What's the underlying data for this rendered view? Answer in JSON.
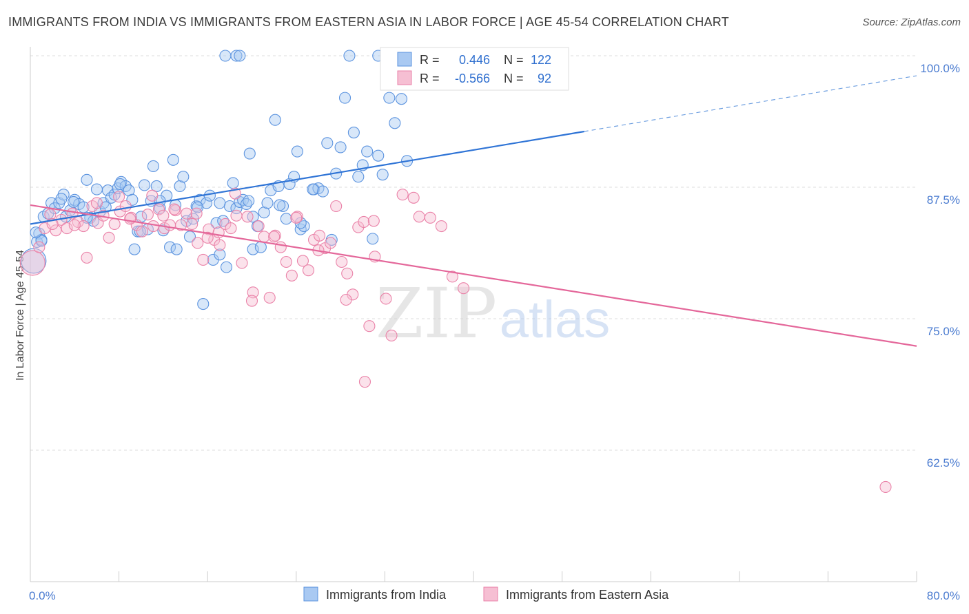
{
  "title": "IMMIGRANTS FROM INDIA VS IMMIGRANTS FROM EASTERN ASIA IN LABOR FORCE | AGE 45-54 CORRELATION CHART",
  "source": "Source: ZipAtlas.com",
  "watermark": {
    "zip": "ZIP",
    "atlas": "atlas"
  },
  "chart_data": {
    "type": "scatter",
    "xlim": [
      0,
      80
    ],
    "ylim": [
      50,
      100
    ],
    "ylabel": "In Labor Force | Age 45-54",
    "xlabel": "",
    "x_tick_labels": [
      {
        "value": 0,
        "label": "0.0%"
      },
      {
        "value": 80,
        "label": "80.0%"
      }
    ],
    "y_ticks": [
      {
        "value": 100,
        "label": "100.0%"
      },
      {
        "value": 87.5,
        "label": "87.5%"
      },
      {
        "value": 75,
        "label": "75.0%"
      },
      {
        "value": 62.5,
        "label": "62.5%"
      }
    ],
    "x_minor_ticks": [
      0,
      8,
      16,
      24,
      32,
      40,
      48,
      56,
      64,
      72,
      80
    ],
    "legend": [
      {
        "r_label": "R =",
        "r_value": "0.446",
        "n_label": "N =",
        "n_value": "122"
      },
      {
        "r_label": "R =",
        "r_value": "-0.566",
        "n_label": "N =",
        "n_value": "92"
      }
    ],
    "series": [
      {
        "name": "Immigrants from India",
        "color": "#6fa3e6",
        "stroke": "#5b93df",
        "fill": "#a9c9f2",
        "trend": {
          "x0": 0,
          "y0": 84.0,
          "x1": 50,
          "y1": 92.8,
          "dash_to_x": 80,
          "dash_to_y": 98.1
        },
        "points": [
          [
            0.3,
            80.5
          ],
          [
            0.6,
            82.3
          ],
          [
            0.8,
            83.1
          ],
          [
            1.0,
            82.5
          ],
          [
            1.2,
            84.7
          ],
          [
            1.6,
            85.0
          ],
          [
            1.9,
            86.0
          ],
          [
            2.2,
            85.5
          ],
          [
            2.6,
            86.0
          ],
          [
            3.0,
            86.8
          ],
          [
            3.2,
            84.7
          ],
          [
            3.6,
            85.3
          ],
          [
            4.0,
            86.3
          ],
          [
            4.4,
            85.9
          ],
          [
            4.8,
            85.6
          ],
          [
            5.1,
            88.2
          ],
          [
            5.4,
            84.6
          ],
          [
            5.7,
            84.3
          ],
          [
            6.0,
            87.3
          ],
          [
            6.3,
            85.2
          ],
          [
            6.6,
            86.0
          ],
          [
            7.0,
            87.2
          ],
          [
            7.3,
            86.5
          ],
          [
            7.6,
            86.8
          ],
          [
            7.9,
            87.4
          ],
          [
            8.2,
            88.0
          ],
          [
            8.6,
            87.6
          ],
          [
            8.9,
            87.2
          ],
          [
            9.2,
            86.3
          ],
          [
            9.4,
            81.6
          ],
          [
            9.7,
            83.3
          ],
          [
            10.0,
            84.7
          ],
          [
            10.3,
            87.7
          ],
          [
            10.6,
            83.5
          ],
          [
            10.9,
            86.2
          ],
          [
            11.1,
            89.5
          ],
          [
            11.4,
            87.6
          ],
          [
            11.7,
            85.5
          ],
          [
            12.0,
            83.4
          ],
          [
            12.3,
            86.7
          ],
          [
            12.6,
            81.8
          ],
          [
            12.9,
            90.1
          ],
          [
            13.2,
            81.6
          ],
          [
            13.5,
            87.6
          ],
          [
            13.8,
            88.5
          ],
          [
            14.1,
            84.3
          ],
          [
            14.4,
            82.8
          ],
          [
            14.7,
            84.5
          ],
          [
            15.0,
            85.7
          ],
          [
            15.3,
            86.3
          ],
          [
            15.6,
            76.4
          ],
          [
            15.9,
            86.0
          ],
          [
            16.2,
            86.7
          ],
          [
            16.5,
            80.6
          ],
          [
            16.8,
            84.1
          ],
          [
            17.1,
            81.1
          ],
          [
            17.4,
            84.3
          ],
          [
            17.7,
            79.9
          ],
          [
            18.0,
            85.7
          ],
          [
            18.3,
            87.9
          ],
          [
            18.6,
            85.5
          ],
          [
            18.9,
            86.1
          ],
          [
            19.2,
            86.3
          ],
          [
            19.5,
            85.9
          ],
          [
            19.8,
            90.7
          ],
          [
            20.1,
            81.6
          ],
          [
            20.5,
            83.8
          ],
          [
            20.8,
            81.8
          ],
          [
            21.1,
            85.1
          ],
          [
            21.4,
            86.0
          ],
          [
            21.7,
            87.2
          ],
          [
            22.1,
            93.9
          ],
          [
            22.4,
            87.6
          ],
          [
            22.8,
            85.7
          ],
          [
            23.1,
            84.5
          ],
          [
            23.4,
            87.8
          ],
          [
            23.8,
            88.5
          ],
          [
            24.1,
            90.9
          ],
          [
            24.4,
            83.5
          ],
          [
            24.7,
            83.8
          ],
          [
            25.6,
            87.3
          ],
          [
            26.0,
            87.4
          ],
          [
            26.4,
            87.1
          ],
          [
            26.8,
            91.7
          ],
          [
            27.2,
            82.5
          ],
          [
            27.6,
            88.8
          ],
          [
            28.0,
            91.3
          ],
          [
            28.4,
            96.0
          ],
          [
            28.8,
            100.0
          ],
          [
            29.2,
            92.7
          ],
          [
            29.6,
            88.5
          ],
          [
            30.0,
            89.6
          ],
          [
            30.4,
            90.9
          ],
          [
            30.9,
            82.6
          ],
          [
            31.4,
            90.5
          ],
          [
            31.8,
            88.7
          ],
          [
            32.4,
            96.0
          ],
          [
            32.9,
            93.6
          ],
          [
            33.5,
            95.9
          ],
          [
            34.0,
            90.0
          ],
          [
            34.8,
            100.0
          ],
          [
            17.6,
            100.0
          ],
          [
            18.6,
            100.0
          ],
          [
            18.9,
            100.0
          ],
          [
            31.4,
            100.0
          ],
          [
            5.1,
            84.6
          ],
          [
            8.1,
            87.8
          ],
          [
            9.9,
            83.3
          ],
          [
            13.1,
            85.8
          ],
          [
            17.1,
            86.0
          ],
          [
            20.1,
            84.7
          ],
          [
            24.4,
            84.1
          ],
          [
            2.8,
            86.4
          ],
          [
            3.9,
            86.1
          ],
          [
            6.8,
            85.6
          ],
          [
            11.7,
            86.2
          ],
          [
            15.1,
            85.6
          ],
          [
            19.7,
            86.2
          ],
          [
            22.5,
            85.8
          ],
          [
            25.5,
            87.3
          ],
          [
            1.0,
            82.4
          ],
          [
            0.5,
            83.2
          ]
        ]
      },
      {
        "name": "Immigrants from Eastern Asia",
        "color": "#ef8fb1",
        "stroke": "#ea82a8",
        "fill": "#f6bfd3",
        "trend": {
          "x0": 0,
          "y0": 85.8,
          "x1": 80,
          "y1": 72.4
        },
        "points": [
          [
            0.2,
            80.3
          ],
          [
            0.8,
            81.8
          ],
          [
            1.3,
            83.6
          ],
          [
            1.8,
            84.9
          ],
          [
            2.3,
            83.4
          ],
          [
            2.8,
            84.4
          ],
          [
            3.3,
            83.6
          ],
          [
            3.8,
            85.0
          ],
          [
            4.3,
            84.2
          ],
          [
            4.8,
            83.8
          ],
          [
            5.1,
            80.8
          ],
          [
            5.6,
            85.7
          ],
          [
            6.1,
            84.1
          ],
          [
            6.6,
            84.8
          ],
          [
            7.1,
            82.7
          ],
          [
            7.6,
            84.0
          ],
          [
            8.1,
            85.2
          ],
          [
            8.6,
            85.7
          ],
          [
            9.1,
            84.6
          ],
          [
            9.6,
            83.9
          ],
          [
            10.1,
            83.3
          ],
          [
            10.6,
            84.9
          ],
          [
            11.1,
            83.8
          ],
          [
            11.6,
            85.4
          ],
          [
            12.1,
            83.6
          ],
          [
            12.6,
            83.9
          ],
          [
            13.1,
            85.3
          ],
          [
            13.6,
            83.9
          ],
          [
            14.1,
            85.0
          ],
          [
            14.6,
            84.0
          ],
          [
            15.1,
            82.2
          ],
          [
            15.6,
            80.6
          ],
          [
            16.1,
            83.5
          ],
          [
            16.6,
            82.5
          ],
          [
            17.1,
            82.0
          ],
          [
            17.6,
            84.0
          ],
          [
            18.1,
            83.6
          ],
          [
            18.6,
            84.8
          ],
          [
            19.1,
            80.3
          ],
          [
            19.6,
            84.7
          ],
          [
            20.1,
            77.5
          ],
          [
            20.6,
            83.8
          ],
          [
            21.1,
            82.8
          ],
          [
            21.6,
            77.0
          ],
          [
            22.1,
            82.9
          ],
          [
            22.6,
            81.8
          ],
          [
            23.1,
            80.4
          ],
          [
            23.6,
            79.1
          ],
          [
            24.1,
            84.7
          ],
          [
            24.6,
            80.5
          ],
          [
            25.1,
            79.6
          ],
          [
            25.6,
            82.5
          ],
          [
            26.1,
            82.9
          ],
          [
            26.6,
            81.7
          ],
          [
            27.1,
            82.2
          ],
          [
            27.6,
            85.7
          ],
          [
            28.1,
            80.4
          ],
          [
            28.6,
            79.3
          ],
          [
            29.1,
            77.3
          ],
          [
            29.6,
            83.7
          ],
          [
            30.1,
            84.2
          ],
          [
            30.6,
            74.3
          ],
          [
            31.1,
            80.9
          ],
          [
            32.1,
            76.9
          ],
          [
            32.6,
            73.4
          ],
          [
            33.6,
            86.8
          ],
          [
            34.6,
            86.5
          ],
          [
            35.1,
            84.7
          ],
          [
            36.1,
            84.6
          ],
          [
            37.1,
            83.8
          ],
          [
            38.1,
            79.0
          ],
          [
            39.1,
            77.9
          ],
          [
            30.2,
            69.0
          ],
          [
            77.2,
            59.0
          ],
          [
            2.0,
            84.0
          ],
          [
            4.0,
            83.9
          ],
          [
            6.0,
            86.0
          ],
          [
            8.0,
            86.6
          ],
          [
            9.0,
            84.5
          ],
          [
            11.0,
            86.7
          ],
          [
            13.0,
            85.4
          ],
          [
            15.0,
            85.0
          ],
          [
            17.0,
            83.2
          ],
          [
            18.5,
            86.9
          ],
          [
            20.0,
            76.7
          ],
          [
            22.0,
            82.8
          ],
          [
            24.0,
            84.6
          ],
          [
            26.0,
            81.5
          ],
          [
            28.5,
            76.8
          ],
          [
            31.0,
            84.3
          ],
          [
            16.0,
            82.7
          ],
          [
            12.0,
            84.8
          ]
        ]
      }
    ],
    "bottom_legend": [
      "Immigrants from India",
      "Immigrants from Eastern Asia"
    ]
  }
}
